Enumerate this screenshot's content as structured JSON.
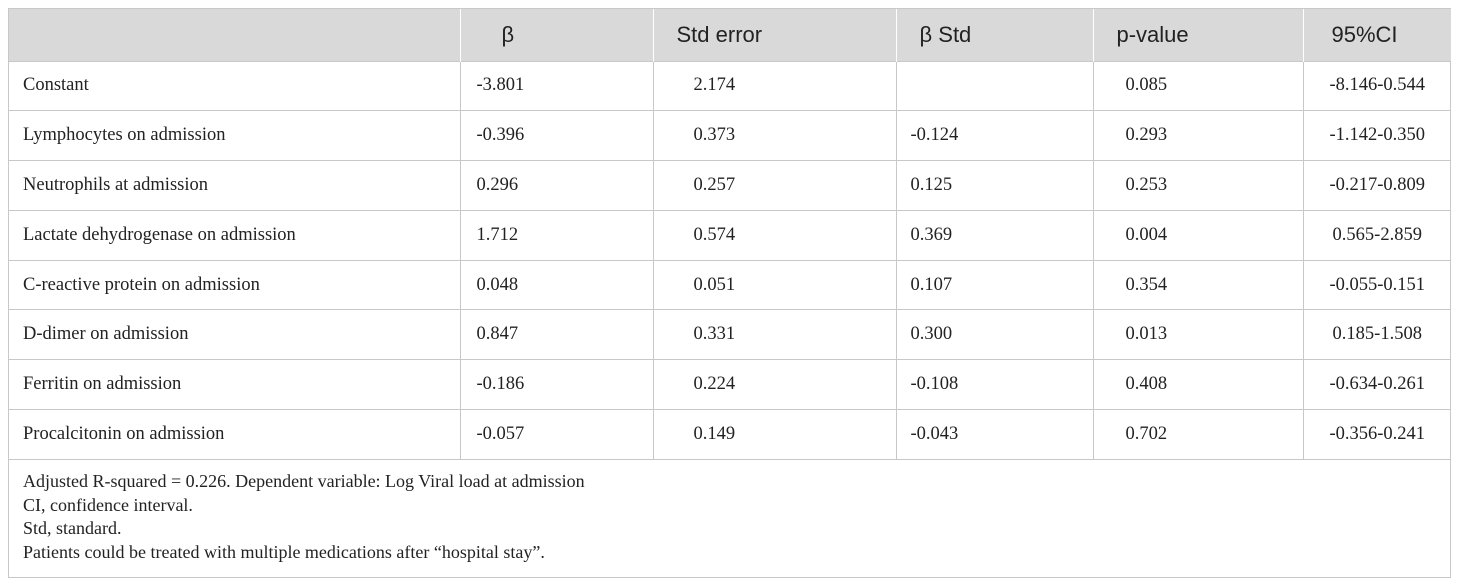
{
  "table": {
    "headers": [
      "",
      "β",
      "Std error",
      "β Std",
      "p-value",
      "95%CI"
    ],
    "rows": [
      [
        "Constant",
        "-3.801",
        "2.174",
        "",
        "0.085",
        "-8.146-0.544"
      ],
      [
        "Lymphocytes on admission",
        "-0.396",
        "0.373",
        "-0.124",
        "0.293",
        "-1.142-0.350"
      ],
      [
        "Neutrophils at admission",
        "0.296",
        "0.257",
        "0.125",
        "0.253",
        "-0.217-0.809"
      ],
      [
        "Lactate dehydrogenase on admission",
        "1.712",
        "0.574",
        "0.369",
        "0.004",
        "0.565-2.859"
      ],
      [
        "C-reactive protein on admission",
        "0.048",
        "0.051",
        "0.107",
        "0.354",
        "-0.055-0.151"
      ],
      [
        "D-dimer on admission",
        "0.847",
        "0.331",
        "0.300",
        "0.013",
        "0.185-1.508"
      ],
      [
        "Ferritin on admission",
        "-0.186",
        "0.224",
        "-0.108",
        "0.408",
        "-0.634-0.261"
      ],
      [
        "Procalcitonin on admission",
        "-0.057",
        "0.149",
        "-0.043",
        "0.702",
        "-0.356-0.241"
      ]
    ]
  },
  "footnotes": [
    "Adjusted R-squared = 0.226. Dependent variable: Log Viral load at admission",
    "CI, confidence interval.",
    "Std, standard.",
    "Patients could be treated with multiple medications after “hospital stay”."
  ],
  "colors": {
    "header_background": "#d9d9d9",
    "border": "#c8c8c8",
    "text": "#222222"
  }
}
